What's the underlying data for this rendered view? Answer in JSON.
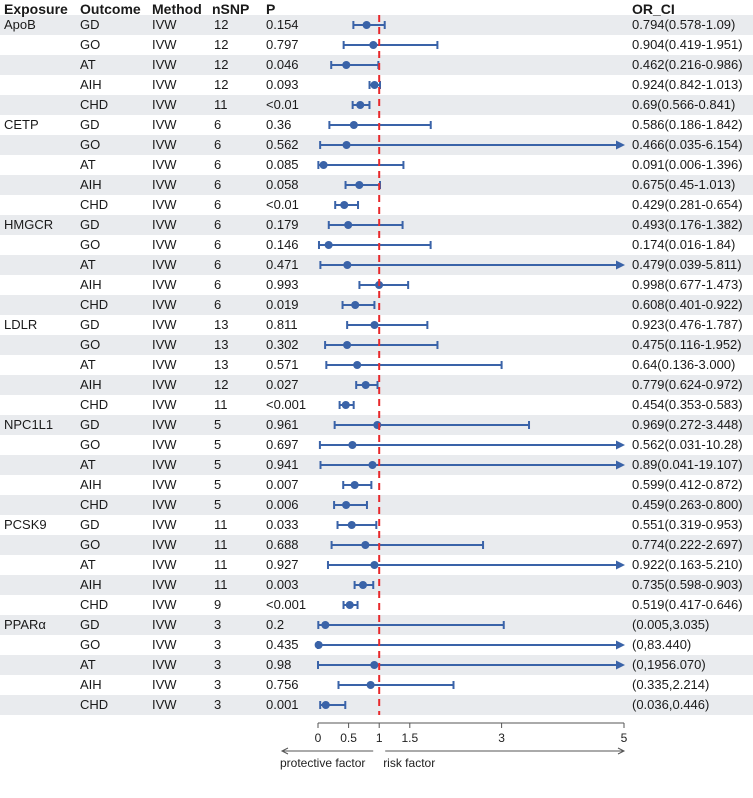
{
  "chart_data": {
    "type": "forest",
    "columns": [
      "Exposure",
      "Outcome",
      "Method",
      "nSNP",
      "P",
      "OR_CI"
    ],
    "x_ticks": [
      "0",
      "0.5",
      "1",
      "1.5",
      "3",
      "5"
    ],
    "reference_line": 1,
    "colors": {
      "point": "#3a63a8",
      "reference": "#e8282b",
      "band": "#e9ebee",
      "axis": "#555555"
    },
    "axis_labels": {
      "left": "protective factor",
      "right": "risk factor"
    },
    "rows": [
      {
        "exposure": "ApoB",
        "outcome": "GD",
        "method": "IVW",
        "nsnp": "12",
        "p": "0.154",
        "or_ci": "0.794(0.578-1.09)",
        "or": 0.794,
        "lo": 0.578,
        "hi": 1.09
      },
      {
        "exposure": "",
        "outcome": "GO",
        "method": "IVW",
        "nsnp": "12",
        "p": "0.797",
        "or_ci": "0.904(0.419-1.951)",
        "or": 0.904,
        "lo": 0.419,
        "hi": 1.951
      },
      {
        "exposure": "",
        "outcome": "AT",
        "method": "IVW",
        "nsnp": "12",
        "p": "0.046",
        "or_ci": "0.462(0.216-0.986)",
        "or": 0.462,
        "lo": 0.216,
        "hi": 0.986
      },
      {
        "exposure": "",
        "outcome": "AIH",
        "method": "IVW",
        "nsnp": "12",
        "p": "0.093",
        "or_ci": "0.924(0.842-1.013)",
        "or": 0.924,
        "lo": 0.842,
        "hi": 1.013
      },
      {
        "exposure": "",
        "outcome": "CHD",
        "method": "IVW",
        "nsnp": "11",
        "p": "<0.01",
        "or_ci": "0.69(0.566-0.841)",
        "or": 0.69,
        "lo": 0.566,
        "hi": 0.841
      },
      {
        "exposure": "CETP",
        "outcome": "GD",
        "method": "IVW",
        "nsnp": "6",
        "p": "0.36",
        "or_ci": "0.586(0.186-1.842)",
        "or": 0.586,
        "lo": 0.186,
        "hi": 1.842
      },
      {
        "exposure": "",
        "outcome": "GO",
        "method": "IVW",
        "nsnp": "6",
        "p": "0.562",
        "or_ci": "0.466(0.035-6.154)",
        "or": 0.466,
        "lo": 0.035,
        "hi": 6.154
      },
      {
        "exposure": "",
        "outcome": "AT",
        "method": "IVW",
        "nsnp": "6",
        "p": "0.085",
        "or_ci": "0.091(0.006-1.396)",
        "or": 0.091,
        "lo": 0.006,
        "hi": 1.396
      },
      {
        "exposure": "",
        "outcome": "AIH",
        "method": "IVW",
        "nsnp": "6",
        "p": "0.058",
        "or_ci": "0.675(0.45-1.013)",
        "or": 0.675,
        "lo": 0.45,
        "hi": 1.013
      },
      {
        "exposure": "",
        "outcome": "CHD",
        "method": "IVW",
        "nsnp": "6",
        "p": "<0.01",
        "or_ci": "0.429(0.281-0.654)",
        "or": 0.429,
        "lo": 0.281,
        "hi": 0.654
      },
      {
        "exposure": "HMGCR",
        "outcome": "GD",
        "method": "IVW",
        "nsnp": "6",
        "p": "0.179",
        "or_ci": "0.493(0.176-1.382)",
        "or": 0.493,
        "lo": 0.176,
        "hi": 1.382
      },
      {
        "exposure": "",
        "outcome": "GO",
        "method": "IVW",
        "nsnp": "6",
        "p": "0.146",
        "or_ci": "0.174(0.016-1.84)",
        "or": 0.174,
        "lo": 0.016,
        "hi": 1.84
      },
      {
        "exposure": "",
        "outcome": "AT",
        "method": "IVW",
        "nsnp": "6",
        "p": "0.471",
        "or_ci": "0.479(0.039-5.811)",
        "or": 0.479,
        "lo": 0.039,
        "hi": 5.811
      },
      {
        "exposure": "",
        "outcome": "AIH",
        "method": "IVW",
        "nsnp": "6",
        "p": "0.993",
        "or_ci": "0.998(0.677-1.473)",
        "or": 0.998,
        "lo": 0.677,
        "hi": 1.473
      },
      {
        "exposure": "",
        "outcome": "CHD",
        "method": "IVW",
        "nsnp": "6",
        "p": "0.019",
        "or_ci": "0.608(0.401-0.922)",
        "or": 0.608,
        "lo": 0.401,
        "hi": 0.922
      },
      {
        "exposure": "LDLR",
        "outcome": "GD",
        "method": "IVW",
        "nsnp": "13",
        "p": "0.811",
        "or_ci": "0.923(0.476-1.787)",
        "or": 0.923,
        "lo": 0.476,
        "hi": 1.787
      },
      {
        "exposure": "",
        "outcome": "GO",
        "method": "IVW",
        "nsnp": "13",
        "p": "0.302",
        "or_ci": "0.475(0.116-1.952)",
        "or": 0.475,
        "lo": 0.116,
        "hi": 1.952
      },
      {
        "exposure": "",
        "outcome": "AT",
        "method": "IVW",
        "nsnp": "13",
        "p": "0.571",
        "or_ci": "0.64(0.136-3.000)",
        "or": 0.64,
        "lo": 0.136,
        "hi": 3.0
      },
      {
        "exposure": "",
        "outcome": "AIH",
        "method": "IVW",
        "nsnp": "12",
        "p": "0.027",
        "or_ci": "0.779(0.624-0.972)",
        "or": 0.779,
        "lo": 0.624,
        "hi": 0.972
      },
      {
        "exposure": "",
        "outcome": "CHD",
        "method": "IVW",
        "nsnp": "11",
        "p": "<0.001",
        "or_ci": "0.454(0.353-0.583)",
        "or": 0.454,
        "lo": 0.353,
        "hi": 0.583
      },
      {
        "exposure": "NPC1L1",
        "outcome": "GD",
        "method": "IVW",
        "nsnp": "5",
        "p": "0.961",
        "or_ci": "0.969(0.272-3.448)",
        "or": 0.969,
        "lo": 0.272,
        "hi": 3.448
      },
      {
        "exposure": "",
        "outcome": "GO",
        "method": "IVW",
        "nsnp": "5",
        "p": "0.697",
        "or_ci": "0.562(0.031-10.28)",
        "or": 0.562,
        "lo": 0.031,
        "hi": 10.28
      },
      {
        "exposure": "",
        "outcome": "AT",
        "method": "IVW",
        "nsnp": "5",
        "p": "0.941",
        "or_ci": "0.89(0.041-19.107)",
        "or": 0.89,
        "lo": 0.041,
        "hi": 19.107
      },
      {
        "exposure": "",
        "outcome": "AIH",
        "method": "IVW",
        "nsnp": "5",
        "p": "0.007",
        "or_ci": "0.599(0.412-0.872)",
        "or": 0.599,
        "lo": 0.412,
        "hi": 0.872
      },
      {
        "exposure": "",
        "outcome": "CHD",
        "method": "IVW",
        "nsnp": "5",
        "p": "0.006",
        "or_ci": "0.459(0.263-0.800)",
        "or": 0.459,
        "lo": 0.263,
        "hi": 0.8
      },
      {
        "exposure": "PCSK9",
        "outcome": "GD",
        "method": "IVW",
        "nsnp": "11",
        "p": "0.033",
        "or_ci": "0.551(0.319-0.953)",
        "or": 0.551,
        "lo": 0.319,
        "hi": 0.953
      },
      {
        "exposure": "",
        "outcome": "GO",
        "method": "IVW",
        "nsnp": "11",
        "p": "0.688",
        "or_ci": "0.774(0.222-2.697)",
        "or": 0.774,
        "lo": 0.222,
        "hi": 2.697
      },
      {
        "exposure": "",
        "outcome": "AT",
        "method": "IVW",
        "nsnp": "11",
        "p": "0.927",
        "or_ci": "0.922(0.163-5.210)",
        "or": 0.922,
        "lo": 0.163,
        "hi": 5.21
      },
      {
        "exposure": "",
        "outcome": "AIH",
        "method": "IVW",
        "nsnp": "11",
        "p": "0.003",
        "or_ci": "0.735(0.598-0.903)",
        "or": 0.735,
        "lo": 0.598,
        "hi": 0.903
      },
      {
        "exposure": "",
        "outcome": "CHD",
        "method": "IVW",
        "nsnp": "9",
        "p": "<0.001",
        "or_ci": "0.519(0.417-0.646)",
        "or": 0.519,
        "lo": 0.417,
        "hi": 0.646
      },
      {
        "exposure": "PPARα",
        "outcome": "GD",
        "method": "IVW",
        "nsnp": "3",
        "p": "0.2",
        "or_ci": "(0.005,3.035)",
        "or": 0.12,
        "lo": 0.005,
        "hi": 3.035
      },
      {
        "exposure": "",
        "outcome": "GO",
        "method": "IVW",
        "nsnp": "3",
        "p": "0.435",
        "or_ci": "(0,83.440)",
        "or": 0.01,
        "lo": 0.0,
        "hi": 83.44
      },
      {
        "exposure": "",
        "outcome": "AT",
        "method": "IVW",
        "nsnp": "3",
        "p": "0.98",
        "or_ci": "(0,1956.070)",
        "or": 0.92,
        "lo": 0.0,
        "hi": 1956.07
      },
      {
        "exposure": "",
        "outcome": "AIH",
        "method": "IVW",
        "nsnp": "3",
        "p": "0.756",
        "or_ci": "(0.335,2.214)",
        "or": 0.86,
        "lo": 0.335,
        "hi": 2.214
      },
      {
        "exposure": "",
        "outcome": "CHD",
        "method": "IVW",
        "nsnp": "3",
        "p": "0.001",
        "or_ci": "(0.036,0.446)",
        "or": 0.127,
        "lo": 0.036,
        "hi": 0.446
      }
    ]
  }
}
